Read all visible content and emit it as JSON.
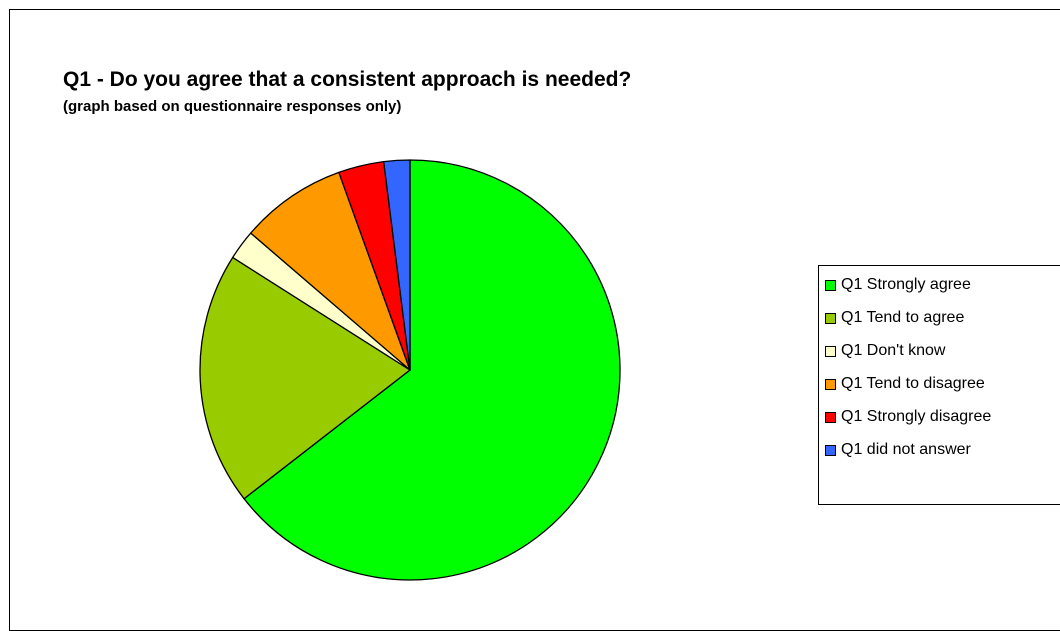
{
  "chart_data": {
    "type": "pie",
    "title": "Q1 - Do you agree that a consistent approach is needed?",
    "subtitle": "(graph based on questionnaire responses only)",
    "categories": [
      "Q1 Strongly agree",
      "Q1 Tend to agree",
      "Q1 Don't know",
      "Q1 Tend to disagree",
      "Q1 Strongly disagree",
      "Q1 did not answer"
    ],
    "values": [
      64.5,
      19.5,
      2.3,
      8.2,
      3.5,
      2.0
    ],
    "value_unit": "percent of responses (estimated from slice angles)",
    "colors": [
      "#00ff00",
      "#99cc00",
      "#ffffcc",
      "#ff9900",
      "#ff0000",
      "#3366ff"
    ],
    "start_angle": "12 o'clock",
    "direction": "clockwise",
    "legend_position": "right",
    "data_labels": false
  }
}
